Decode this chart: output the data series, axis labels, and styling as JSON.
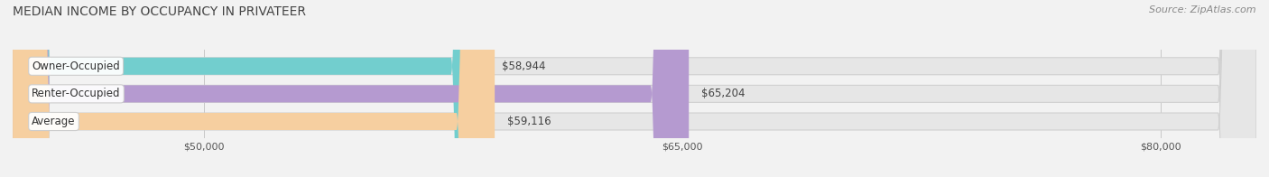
{
  "title": "MEDIAN INCOME BY OCCUPANCY IN PRIVATEER",
  "source": "Source: ZipAtlas.com",
  "categories": [
    "Owner-Occupied",
    "Renter-Occupied",
    "Average"
  ],
  "values": [
    58944,
    65204,
    59116
  ],
  "labels": [
    "$58,944",
    "$65,204",
    "$59,116"
  ],
  "bar_colors": [
    "#72cece",
    "#b59ad0",
    "#f6cfa0"
  ],
  "background_color": "#f2f2f2",
  "bar_bg_color": "#e6e6e6",
  "xmin": 44000,
  "xmax": 83000,
  "xticks": [
    50000,
    65000,
    80000
  ],
  "xtick_labels": [
    "$50,000",
    "$65,000",
    "$80,000"
  ],
  "title_fontsize": 10,
  "source_fontsize": 8,
  "label_fontsize": 8.5,
  "category_fontsize": 8.5
}
